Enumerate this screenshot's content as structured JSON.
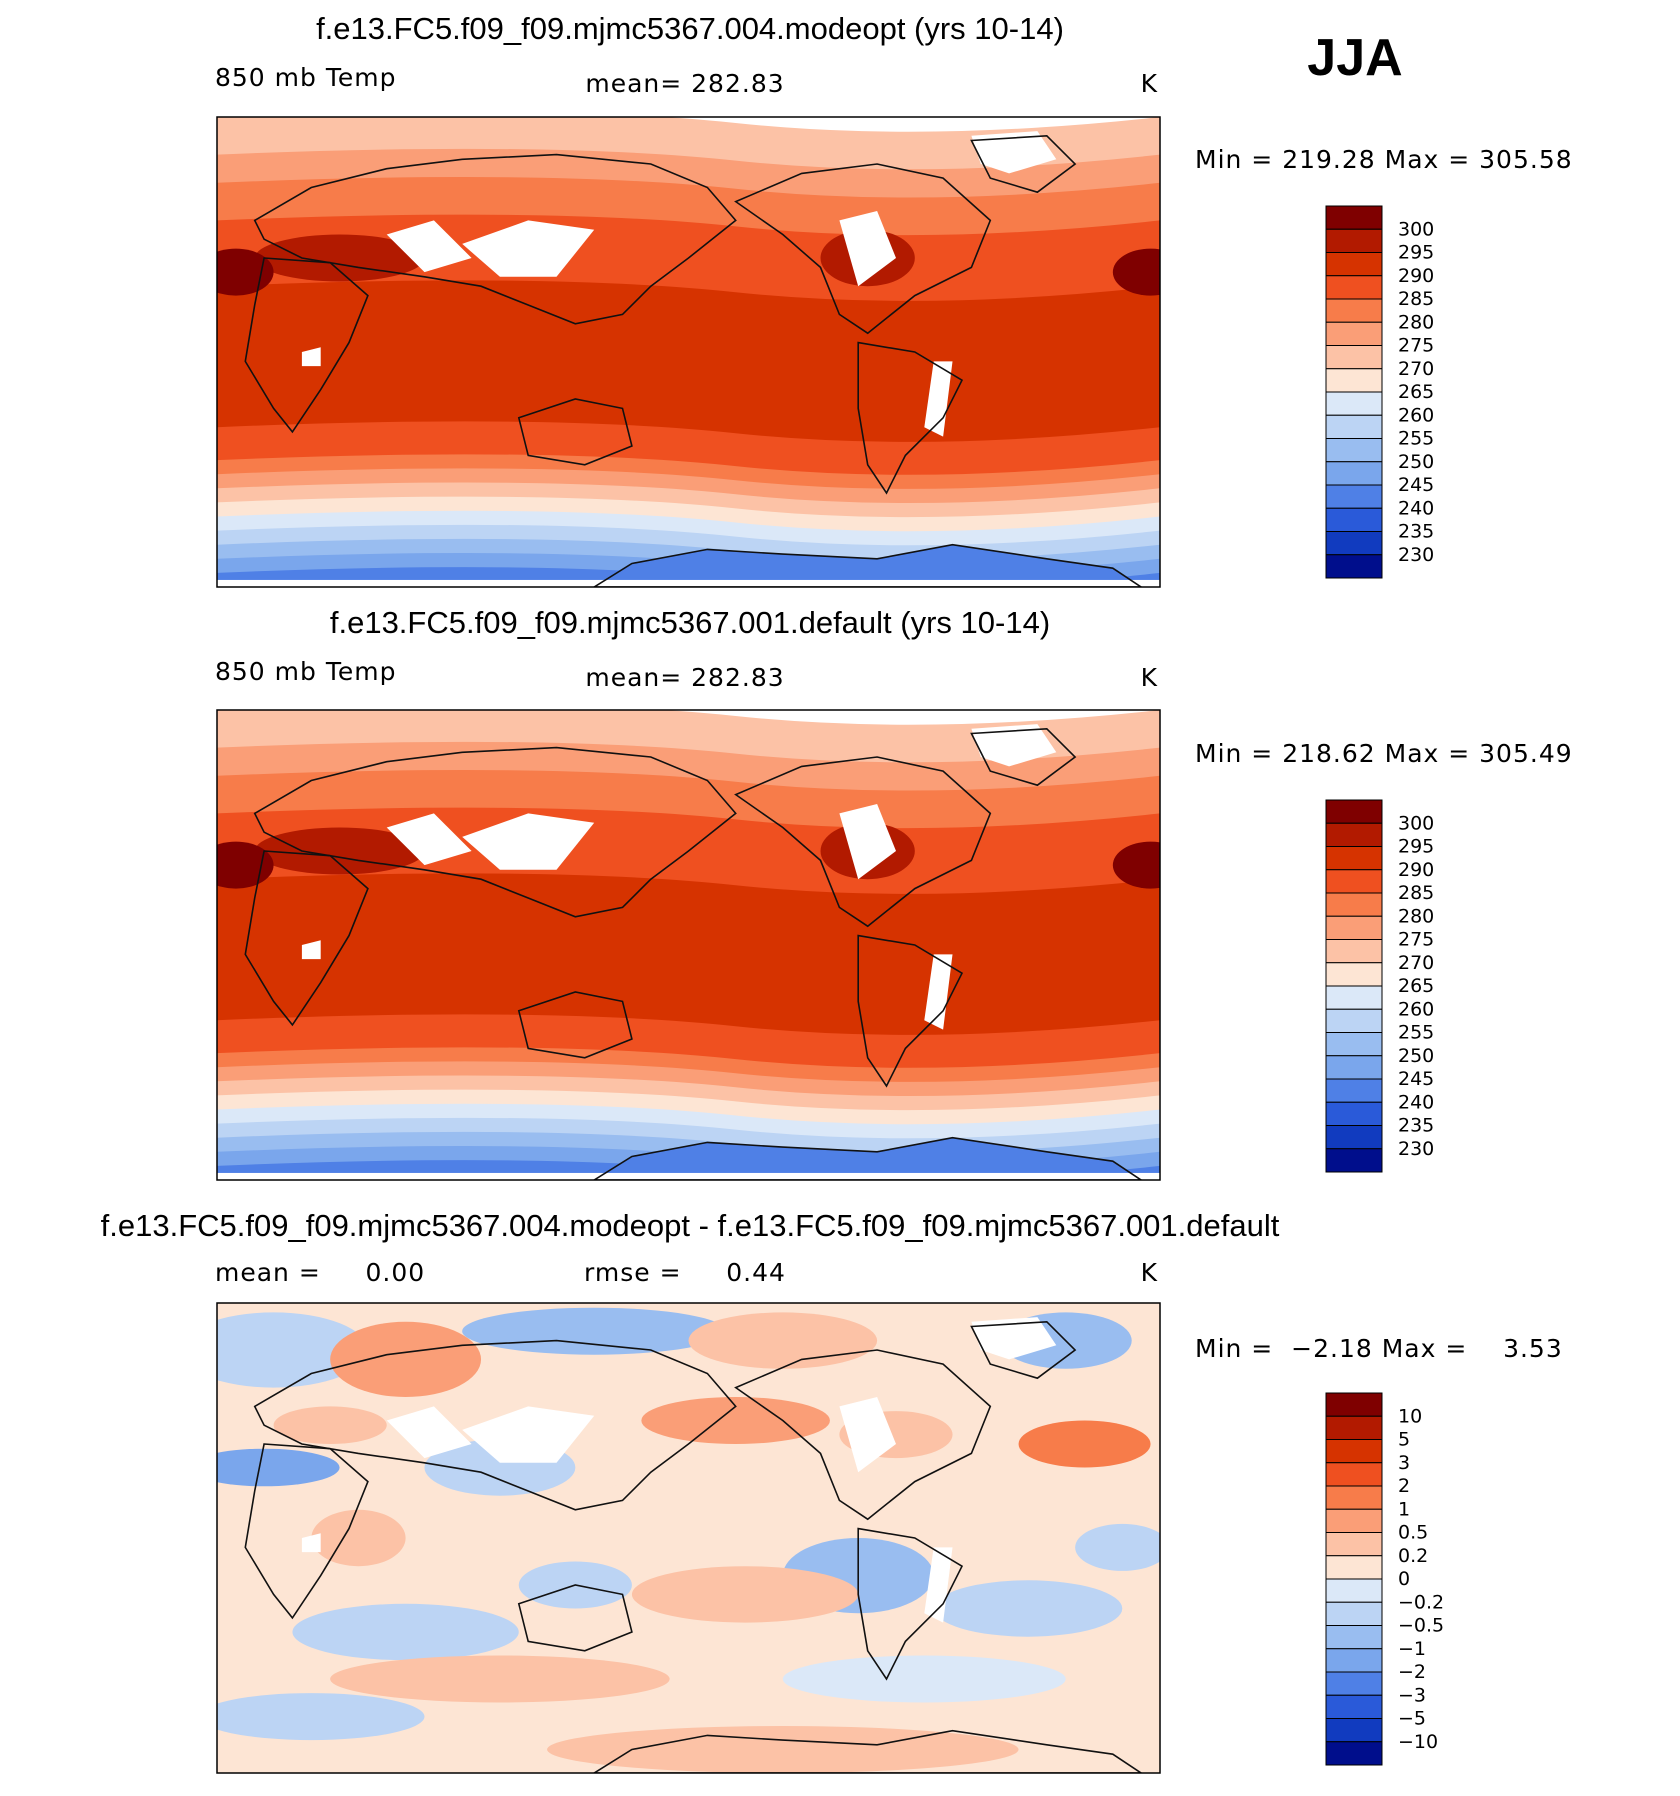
{
  "season": "JJA",
  "colors": {
    "coast": "#111111",
    "frame": "#000000",
    "land_blank": "#ffffff"
  },
  "panels": [
    {
      "id": "modeopt",
      "title": "f.e13.FC5.f09_f09.mjmc5367.004.modeopt (yrs 10-14)",
      "left_label": "850 mb Temp",
      "center_label": "mean= 282.83",
      "right_label": "K",
      "minmax": "Min = 219.28 Max = 305.58",
      "colorbar": {
        "ticks": [
          "300",
          "295",
          "290",
          "285",
          "280",
          "275",
          "270",
          "265",
          "260",
          "255",
          "250",
          "245",
          "240",
          "235",
          "230"
        ],
        "colors": [
          "#7f0000",
          "#b21a00",
          "#d63300",
          "#ef5020",
          "#f77c4a",
          "#fa9e77",
          "#fcc2a6",
          "#fde5d4",
          "#dbe8f8",
          "#bcd4f4",
          "#99bdf0",
          "#7aa6ec",
          "#4f80e6",
          "#2a5ad9",
          "#113bbf",
          "#000e8c"
        ]
      }
    },
    {
      "id": "default",
      "title": "f.e13.FC5.f09_f09.mjmc5367.001.default (yrs 10-14)",
      "left_label": "850 mb Temp",
      "center_label": "mean= 282.83",
      "right_label": "K",
      "minmax": "Min = 218.62 Max = 305.49",
      "colorbar": {
        "ticks": [
          "300",
          "295",
          "290",
          "285",
          "280",
          "275",
          "270",
          "265",
          "260",
          "255",
          "250",
          "245",
          "240",
          "235",
          "230"
        ],
        "colors": [
          "#7f0000",
          "#b21a00",
          "#d63300",
          "#ef5020",
          "#f77c4a",
          "#fa9e77",
          "#fcc2a6",
          "#fde5d4",
          "#dbe8f8",
          "#bcd4f4",
          "#99bdf0",
          "#7aa6ec",
          "#4f80e6",
          "#2a5ad9",
          "#113bbf",
          "#000e8c"
        ]
      }
    },
    {
      "id": "difference",
      "title": "f.e13.FC5.f09_f09.mjmc5367.004.modeopt - f.e13.FC5.f09_f09.mjmc5367.001.default",
      "left_label": "mean =     0.00",
      "center_label": "rmse =     0.44",
      "right_label": "K",
      "minmax": "Min =  −2.18 Max =    3.53",
      "colorbar": {
        "ticks": [
          "10",
          "5",
          "3",
          "2",
          "1",
          "0.5",
          "0.2",
          "0",
          "−0.2",
          "−0.5",
          "−1",
          "−2",
          "−3",
          "−5",
          "−10"
        ],
        "colors": [
          "#7f0000",
          "#b21a00",
          "#d63300",
          "#ef5020",
          "#f77c4a",
          "#fa9e77",
          "#fcc2a6",
          "#fde5d4",
          "#dbe8f8",
          "#bcd4f4",
          "#99bdf0",
          "#7aa6ec",
          "#4f80e6",
          "#2a5ad9",
          "#113bbf",
          "#000e8c"
        ]
      }
    }
  ],
  "chart_data": [
    {
      "type": "heatmap",
      "title": "f.e13.FC5.f09_f09.mjmc5367.004.modeopt (yrs 10-14)",
      "variable": "850 mb Temp",
      "units": "K",
      "mean": 282.83,
      "min": 219.28,
      "max": 305.58,
      "levels": [
        230,
        235,
        240,
        245,
        250,
        255,
        260,
        265,
        270,
        275,
        280,
        285,
        290,
        295,
        300
      ],
      "zonal_structure": [
        {
          "lat": 85,
          "value": 272
        },
        {
          "lat": 75,
          "value": 278
        },
        {
          "lat": 60,
          "value": 283
        },
        {
          "lat": 45,
          "value": 287
        },
        {
          "lat": 30,
          "value": 291
        },
        {
          "lat": 15,
          "value": 292
        },
        {
          "lat": 0,
          "value": 290
        },
        {
          "lat": -15,
          "value": 288
        },
        {
          "lat": -30,
          "value": 282
        },
        {
          "lat": -42,
          "value": 276
        },
        {
          "lat": -50,
          "value": 268
        },
        {
          "lat": -58,
          "value": 260
        },
        {
          "lat": -66,
          "value": 252
        },
        {
          "lat": -75,
          "value": 242
        }
      ]
    },
    {
      "type": "heatmap",
      "title": "f.e13.FC5.f09_f09.mjmc5367.001.default (yrs 10-14)",
      "variable": "850 mb Temp",
      "units": "K",
      "mean": 282.83,
      "min": 218.62,
      "max": 305.49,
      "levels": [
        230,
        235,
        240,
        245,
        250,
        255,
        260,
        265,
        270,
        275,
        280,
        285,
        290,
        295,
        300
      ],
      "zonal_structure": [
        {
          "lat": 85,
          "value": 272
        },
        {
          "lat": 75,
          "value": 278
        },
        {
          "lat": 60,
          "value": 283
        },
        {
          "lat": 45,
          "value": 287
        },
        {
          "lat": 30,
          "value": 291
        },
        {
          "lat": 15,
          "value": 292
        },
        {
          "lat": 0,
          "value": 290
        },
        {
          "lat": -15,
          "value": 288
        },
        {
          "lat": -30,
          "value": 282
        },
        {
          "lat": -42,
          "value": 276
        },
        {
          "lat": -50,
          "value": 268
        },
        {
          "lat": -58,
          "value": 260
        },
        {
          "lat": -66,
          "value": 252
        },
        {
          "lat": -75,
          "value": 242
        }
      ]
    },
    {
      "type": "heatmap",
      "title": "f.e13.FC5.f09_f09.mjmc5367.004.modeopt - f.e13.FC5.f09_f09.mjmc5367.001.default",
      "units": "K",
      "mean": 0.0,
      "rmse": 0.44,
      "min": -2.18,
      "max": 3.53,
      "levels": [
        -10,
        -5,
        -3,
        -2,
        -1,
        -0.5,
        -0.2,
        0,
        0.2,
        0.5,
        1,
        2,
        3,
        5,
        10
      ]
    }
  ]
}
